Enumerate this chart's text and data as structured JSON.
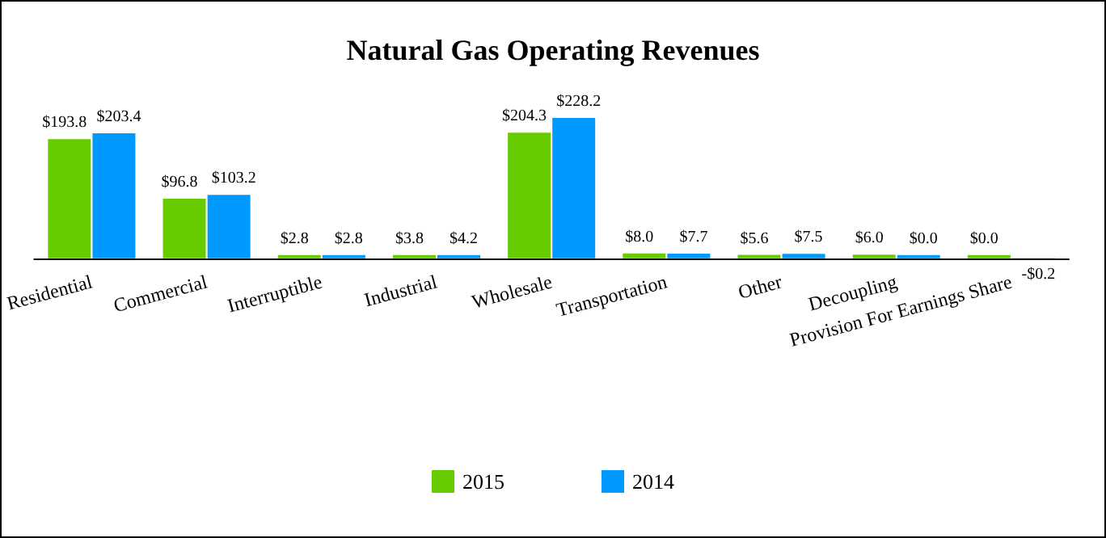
{
  "chart_data": {
    "type": "bar",
    "title": "Natural Gas Operating Revenues",
    "categories": [
      "Residential",
      "Commercial",
      "Interruptible",
      "Industrial",
      "Wholesale",
      "Transportation",
      "Other",
      "Decoupling",
      "Provision For Earnings Share"
    ],
    "series": [
      {
        "name": "2015",
        "color": "#66cc00",
        "values": [
          193.8,
          96.8,
          2.8,
          3.8,
          204.3,
          8.0,
          5.6,
          6.0,
          0.0
        ],
        "value_labels": [
          "$193.8",
          "$96.8",
          "$2.8",
          "$3.8",
          "$204.3",
          "$8.0",
          "$5.6",
          "$6.0",
          "$0.0"
        ]
      },
      {
        "name": "2014",
        "color": "#0099ff",
        "values": [
          203.4,
          103.2,
          2.8,
          4.2,
          228.2,
          7.7,
          7.5,
          0.0,
          -0.2
        ],
        "value_labels": [
          "$203.4",
          "$103.2",
          "$2.8",
          "$4.2",
          "$228.2",
          "$7.7",
          "$7.5",
          "$0.0",
          "-$0.2"
        ]
      }
    ],
    "legend": "bottom",
    "grid": false
  }
}
